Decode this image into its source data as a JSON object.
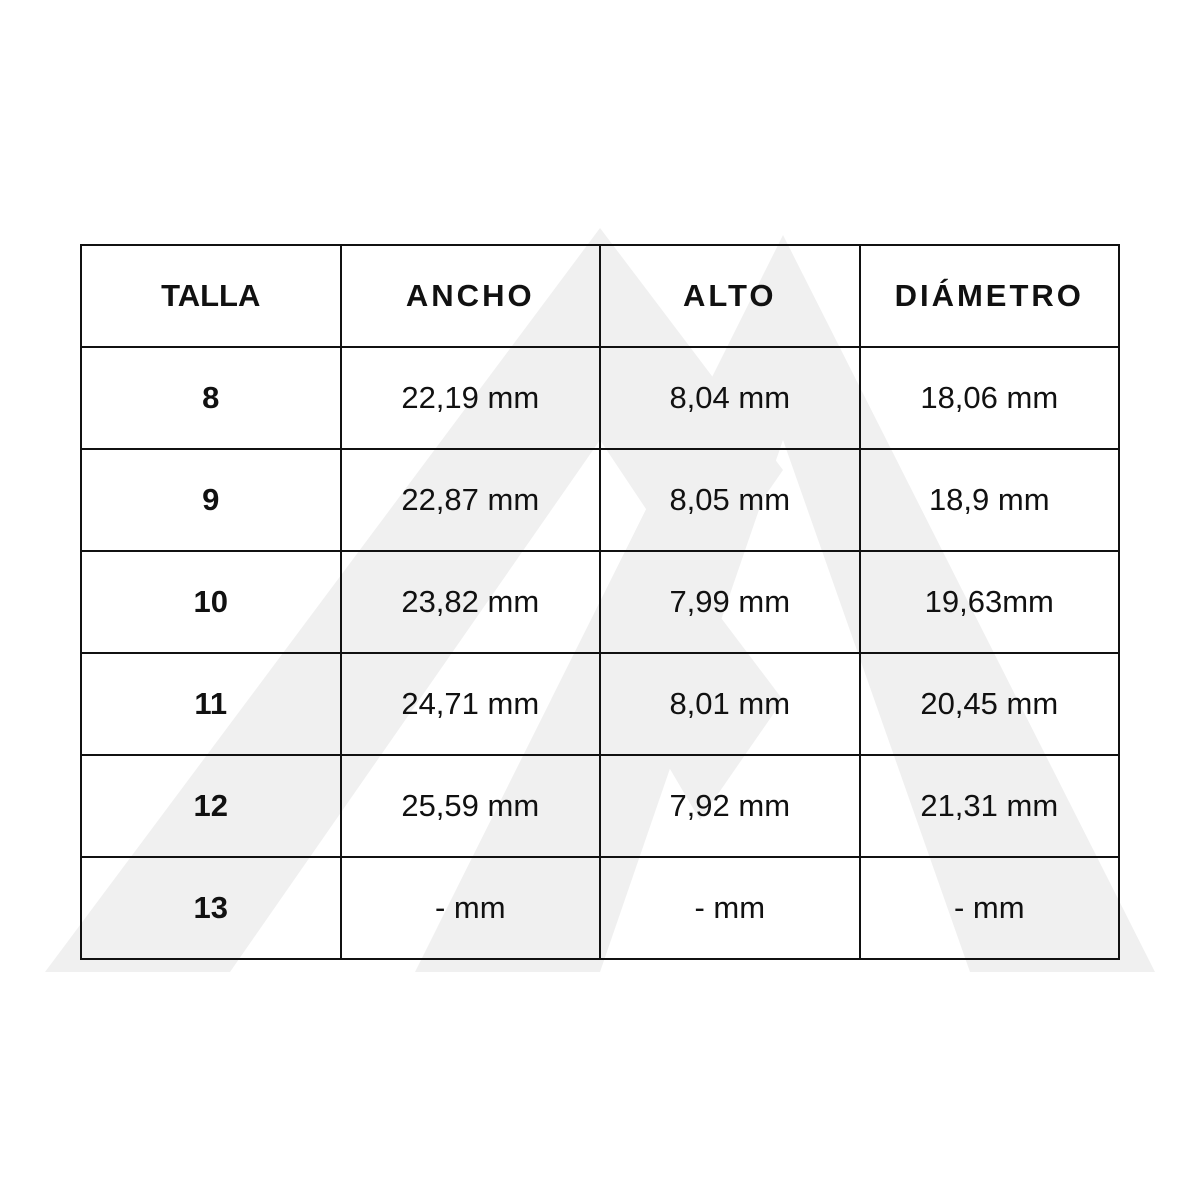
{
  "watermark_color": "#f0f0f0",
  "table": {
    "headers": [
      "TALLA",
      "ANCHO",
      "ALTO",
      "DIÁMETRO"
    ],
    "rows": [
      [
        "8",
        "22,19 mm",
        "8,04 mm",
        "18,06 mm"
      ],
      [
        "9",
        "22,87 mm",
        "8,05 mm",
        "18,9 mm"
      ],
      [
        "10",
        "23,82 mm",
        "7,99 mm",
        "19,63mm"
      ],
      [
        "11",
        "24,71 mm",
        "8,01 mm",
        "20,45 mm"
      ],
      [
        "12",
        "25,59 mm",
        "7,92 mm",
        "21,31 mm"
      ],
      [
        "13",
        "- mm",
        "- mm",
        "- mm"
      ]
    ]
  }
}
